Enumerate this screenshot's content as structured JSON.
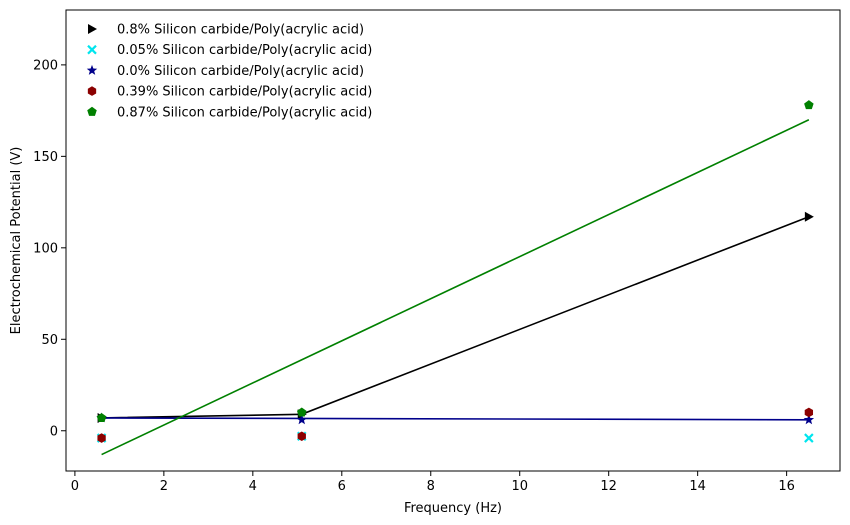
{
  "chart_data": {
    "type": "scatter",
    "xlabel": "Frequency (Hz)",
    "ylabel": "Electrochemical Potential (V)",
    "xlim": [
      -0.2,
      17.2
    ],
    "ylim": [
      -22,
      230
    ],
    "xticks": [
      0,
      2,
      4,
      6,
      8,
      10,
      12,
      14,
      16
    ],
    "yticks": [
      0,
      50,
      100,
      150,
      200
    ],
    "grid": false,
    "legend_position": "top-left",
    "series": [
      {
        "name": "0.8% Silicon carbide/Poly(acrylic acid)",
        "marker": "triangle-right",
        "color": "#000000",
        "x": [
          0.6,
          5.1,
          16.5
        ],
        "y": [
          7,
          9,
          117
        ],
        "line": {
          "x": [
            0.6,
            5.1,
            16.5
          ],
          "y": [
            7,
            9,
            117
          ],
          "color": "#000000"
        }
      },
      {
        "name": "0.05% Silicon carbide/Poly(acrylic acid)",
        "marker": "x",
        "color": "#00e5ee",
        "x": [
          0.6,
          5.1,
          16.5
        ],
        "y": [
          -4,
          -3,
          -4
        ],
        "line": null
      },
      {
        "name": "0.0% Silicon carbide/Poly(acrylic acid)",
        "marker": "star",
        "color": "#00008b",
        "x": [
          0.6,
          5.1,
          16.5
        ],
        "y": [
          7,
          6,
          6
        ],
        "line": {
          "x": [
            0.6,
            16.5
          ],
          "y": [
            7,
            6
          ],
          "color": "#00008b"
        }
      },
      {
        "name": "0.39% Silicon carbide/Poly(acrylic acid)",
        "marker": "hexagon",
        "color": "#8b0000",
        "x": [
          0.6,
          5.1,
          16.5
        ],
        "y": [
          -4,
          -3,
          10
        ],
        "line": null
      },
      {
        "name": "0.87% Silicon carbide/Poly(acrylic acid)",
        "marker": "pentagon",
        "color": "#008000",
        "x": [
          0.6,
          5.1,
          16.5
        ],
        "y": [
          7,
          10,
          178
        ],
        "line": {
          "x": [
            0.6,
            16.5
          ],
          "y": [
            -13,
            170
          ],
          "color": "#008000"
        }
      }
    ]
  }
}
